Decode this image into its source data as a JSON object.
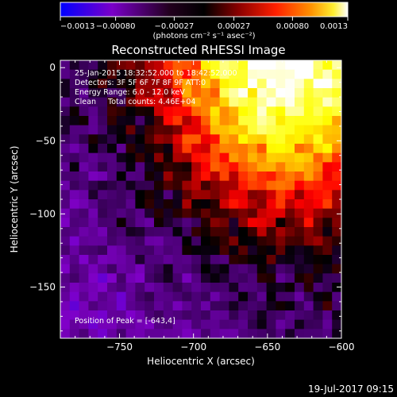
{
  "chart_data": {
    "type": "heatmap",
    "title": "Reconstructed RHESSI Image",
    "xlabel": "Heliocentric X (arcsec)",
    "ylabel": "Heliocentric Y (arcsec)",
    "xlim": [
      -790,
      -600
    ],
    "ylim": [
      -185,
      5
    ],
    "x_ticks": [
      -750,
      -700,
      -650,
      -600
    ],
    "x_tick_labels": [
      "−750",
      "−700",
      "−650",
      "−600"
    ],
    "y_ticks": [
      0,
      -50,
      -100,
      -150
    ],
    "y_tick_labels": [
      "0",
      "−50",
      "−100",
      "−150"
    ],
    "colorbar": {
      "range": [
        -0.0013,
        0.0013
      ],
      "ticks": [
        -0.0013,
        -0.0008,
        -0.00027,
        0.00027,
        0.0008,
        0.0013
      ],
      "tick_labels": [
        "−0.0013",
        "−0.00080",
        "−0.00027",
        "0.00027",
        "0.00080",
        "0.0013"
      ],
      "unit_label": "(photons cm⁻² s⁻¹ asec⁻²)",
      "colors": [
        "#0000ff",
        "#8000c8",
        "#000000",
        "#800000",
        "#ff0000",
        "#ff8000",
        "#ffff00",
        "#ffffff"
      ]
    },
    "annotations": {
      "time_range": "25-Jan-2015 18:32:52.000 to 18:42:52.000",
      "detectors": "Detectors: 3F 5F 6F 7F 8F 9F ATT:0",
      "energy_range": "Energy Range: 6.0 - 12.0 keV",
      "algorithm": "Clean     Total counts: 4.46E+04",
      "peak_position": "Position of Peak = [-643,4]"
    },
    "peak": [
      -643,
      4
    ],
    "grid": false
  },
  "footer": {
    "date": "19-Jul-2017 09:15"
  }
}
